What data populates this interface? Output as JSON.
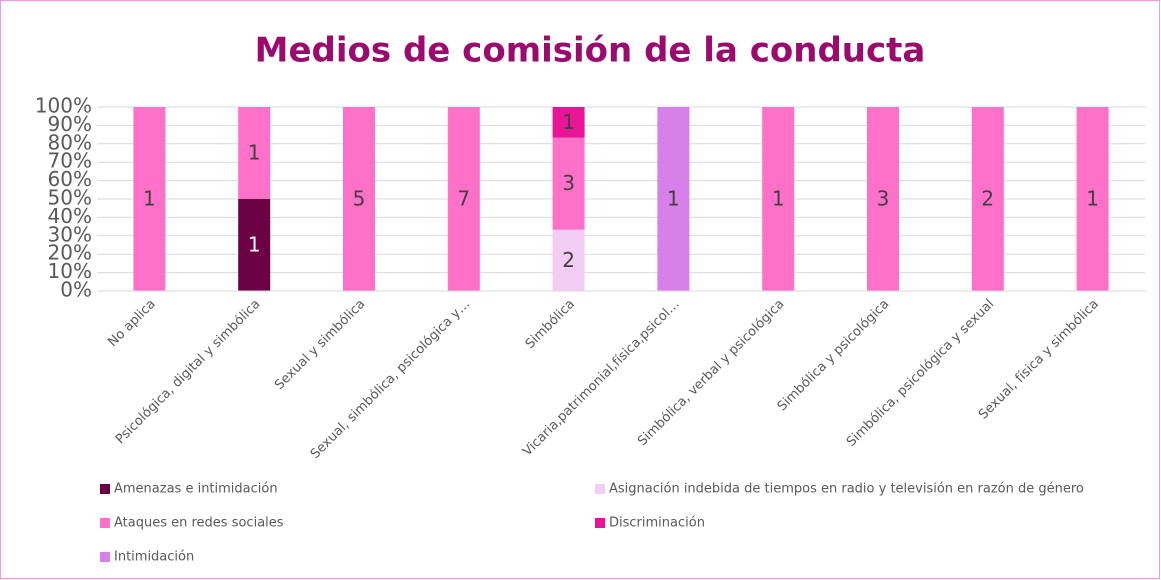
{
  "chart_data": {
    "type": "stacked_bar_100",
    "title": "Medios de comisión de la conducta",
    "categories": [
      "No aplica",
      "Psicológica, digital y simbólica",
      "Sexual y simbólica",
      "Sexual, simbólica, psicológica y…",
      "Simbólica",
      "Vicaria,patrimonial,física,psicol…",
      "Simbólica, verbal y psicológica",
      "Simbólica y psicológica",
      "Simbólica, psicológica y sexual",
      "Sexual, física y simbólica"
    ],
    "series": [
      {
        "name": "Amenazas e intimidación",
        "color": "#6b0045",
        "values": [
          null,
          1,
          null,
          null,
          null,
          null,
          null,
          null,
          null,
          null
        ]
      },
      {
        "name": "Asignación indebida de tiempos en radio y televisión en razón de género",
        "color": "#f3cdf3",
        "values": [
          null,
          null,
          null,
          null,
          2,
          null,
          null,
          null,
          null,
          null
        ]
      },
      {
        "name": "Ataques en redes sociales",
        "color": "#ff70c8",
        "values": [
          1,
          1,
          5,
          7,
          3,
          null,
          1,
          3,
          2,
          1
        ]
      },
      {
        "name": "Discriminación",
        "color": "#ea1497",
        "values": [
          null,
          null,
          null,
          null,
          1,
          null,
          null,
          null,
          null,
          null
        ]
      },
      {
        "name": "Intimidación",
        "color": "#d880ea",
        "values": [
          null,
          null,
          null,
          null,
          null,
          1,
          null,
          null,
          null,
          null
        ]
      }
    ],
    "ylim": [
      0,
      100
    ],
    "yticks": [
      {
        "value": 0,
        "label": "0%"
      },
      {
        "value": 10,
        "label": "10%"
      },
      {
        "value": 20,
        "label": "20%"
      },
      {
        "value": 30,
        "label": "30%"
      },
      {
        "value": 40,
        "label": "40%"
      },
      {
        "value": 50,
        "label": "50%"
      },
      {
        "value": 60,
        "label": "60%"
      },
      {
        "value": 70,
        "label": "70%"
      },
      {
        "value": 80,
        "label": "80%"
      },
      {
        "value": 90,
        "label": "90%"
      },
      {
        "value": 100,
        "label": "100%"
      }
    ],
    "grid": true,
    "legend": "bottom"
  }
}
